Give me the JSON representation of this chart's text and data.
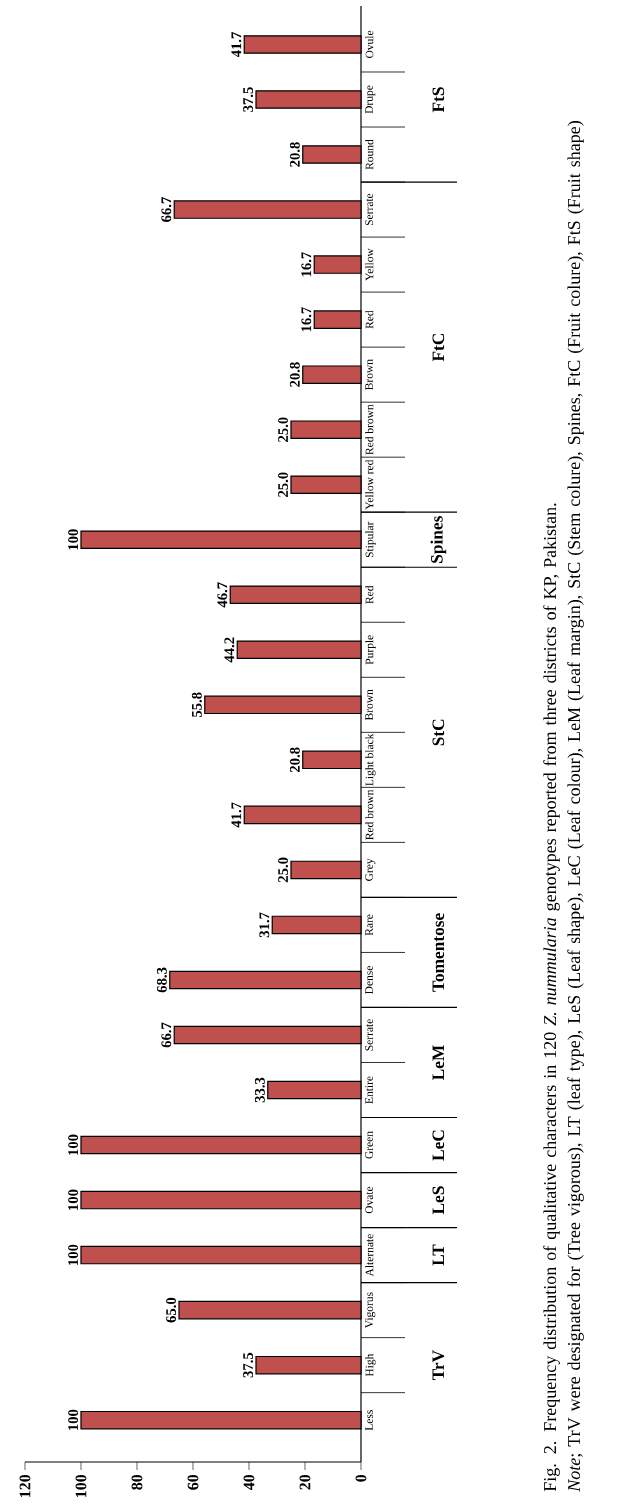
{
  "chart_data": {
    "type": "bar",
    "orientation": "horizontal",
    "title": "Fig. 2. Frequency distribution of qualitative characters in 120 *Z. nummularia* genotypes reported from three districts of KP, Pakistan.",
    "categories": [
      "Ovule",
      "Drupe",
      "Round",
      "Serrate",
      "Yellow",
      "Red",
      "Brown",
      "Red brown",
      "Yellow red",
      "Stipular",
      "Red",
      "Purple",
      "Brown",
      "Light black",
      "Red brown",
      "Grey",
      "Rare",
      "Dense",
      "Serrate",
      "Entire",
      "Green",
      "Ovate",
      "Alternate",
      "Vigorus",
      "High",
      "Less"
    ],
    "values": [
      41.7,
      37.5,
      20.8,
      66.7,
      16.7,
      16.7,
      20.8,
      25.0,
      25.0,
      100,
      46.7,
      44.2,
      55.8,
      20.8,
      41.7,
      25.0,
      31.7,
      68.3,
      66.7,
      33.3,
      100,
      100,
      100,
      65.0,
      37.5,
      100
    ],
    "value_labels": [
      "41.7",
      "37.5",
      "20.8",
      "66.7",
      "16.7",
      "16.7",
      "20.8",
      "25.0",
      "25.0",
      "100",
      "46.7",
      "44.2",
      "55.8",
      "20.8",
      "41.7",
      "25.0",
      "31.7",
      "68.3",
      "66.7",
      "33.3",
      "100",
      "100",
      "100",
      "65.0",
      "37.5",
      "100"
    ],
    "color": "#c0504d",
    "xlim": [
      120,
      0
    ],
    "xticks": [
      120,
      100,
      80,
      60,
      40,
      20,
      0
    ],
    "annotations": [
      "FtS",
      "FtC",
      "Spines",
      "StC",
      "Tomentose",
      "LeM",
      "LeC",
      "LeS",
      "LT",
      "TrV",
      "*Note*; TrV were designated for (Tree vigorous), LT (leaf type), LeS (Leaf shape), LeC (Leaf colour), LeM (Leaf margin), StC (Stem colure), Spines, FtC (Fruit colure), FtS (Fruit shape)"
    ]
  }
}
